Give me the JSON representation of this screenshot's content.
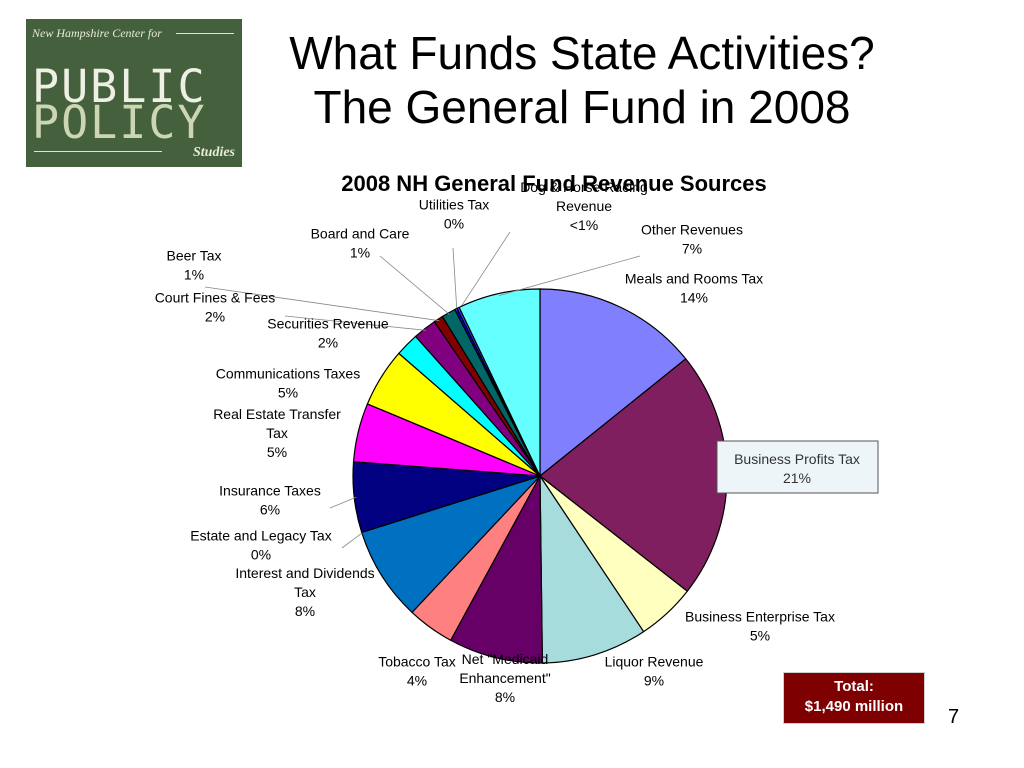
{
  "logo": {
    "top_text": "New Hampshire Center for",
    "word1": "PUBLIC",
    "word2": "POLICY",
    "bottom_text": "Studies"
  },
  "slide": {
    "title_line1": "What Funds State Activities?",
    "title_line2": "The General Fund in 2008",
    "page_number": "7"
  },
  "total": {
    "label": "Total:",
    "value": "$1,490 million"
  },
  "chart_data": {
    "type": "pie",
    "title": "2008 NH General Fund Revenue Sources",
    "unit": "%",
    "total": "$1,490 million",
    "start_angle_deg": 0,
    "direction": "clockwise",
    "slices": [
      {
        "label": "Meals and Rooms Tax",
        "display": "14%",
        "value": 14,
        "color": "#8080ff"
      },
      {
        "label": "Business Profits Tax",
        "display": "21%",
        "value": 21,
        "color": "#7f1f5f"
      },
      {
        "label": "Business Enterprise Tax",
        "display": "5%",
        "value": 5,
        "color": "#ffffc0"
      },
      {
        "label": "Liquor Revenue",
        "display": "9%",
        "value": 9,
        "color": "#a6dcdc"
      },
      {
        "label": "Net \"Medicaid Enhancement\"",
        "display": "8%",
        "value": 8,
        "color": "#660066"
      },
      {
        "label": "Tobacco Tax",
        "display": "4%",
        "value": 4,
        "color": "#ff8080"
      },
      {
        "label": "Interest and Dividends Tax",
        "display": "8%",
        "value": 8,
        "color": "#0070c0"
      },
      {
        "label": "Estate and Legacy Tax",
        "display": "0%",
        "value": 0,
        "color": "#c0c0ff"
      },
      {
        "label": "Insurance Taxes",
        "display": "6%",
        "value": 6,
        "color": "#000080"
      },
      {
        "label": "Real Estate Transfer Tax",
        "display": "5%",
        "value": 5,
        "color": "#ff00ff"
      },
      {
        "label": "Communications Taxes",
        "display": "5%",
        "value": 5,
        "color": "#ffff00"
      },
      {
        "label": "Securities Revenue",
        "display": "2%",
        "value": 2,
        "color": "#00ffff"
      },
      {
        "label": "Court Fines & Fees",
        "display": "2%",
        "value": 2,
        "color": "#800080"
      },
      {
        "label": "Beer Tax",
        "display": "1%",
        "value": 0.8,
        "color": "#800000"
      },
      {
        "label": "Board and Care",
        "display": "1%",
        "value": 1.2,
        "color": "#006666"
      },
      {
        "label": "Utilities Tax",
        "display": "0%",
        "value": 0.2,
        "color": "#0000ff"
      },
      {
        "label": "Dog & Horse Racing Revenue",
        "display": "<1%",
        "value": 0.2,
        "color": "#4040ff"
      },
      {
        "label": "Other Revenues",
        "display": "7%",
        "value": 7,
        "color": "#66ffff"
      }
    ],
    "highlighted_label": "Business Profits Tax",
    "highlight_style": {
      "fill": "#eef5f8",
      "text": "#333333"
    }
  }
}
